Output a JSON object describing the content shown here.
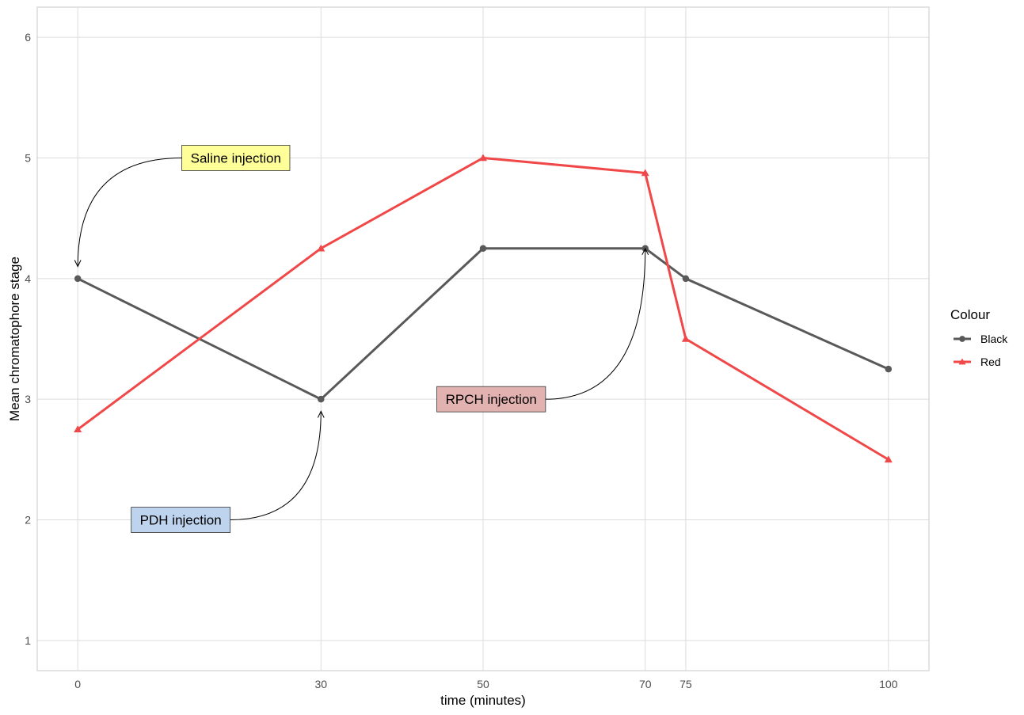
{
  "chart_data": {
    "type": "line",
    "xlabel": "time (minutes)",
    "ylabel": "Mean chromatophore stage",
    "x_ticks": [
      0,
      30,
      50,
      70,
      75,
      100
    ],
    "y_ticks": [
      1,
      2,
      3,
      4,
      5,
      6
    ],
    "xlim": [
      -5,
      105
    ],
    "ylim": [
      0.75,
      6.25
    ],
    "grid": true,
    "legend": {
      "title": "Colour",
      "position": "right"
    },
    "series": [
      {
        "name": "Black",
        "color": "#595959",
        "marker": "circle",
        "x": [
          0,
          30,
          50,
          70,
          75,
          100
        ],
        "y": [
          4,
          3,
          4.25,
          4.25,
          4,
          3.25
        ]
      },
      {
        "name": "Red",
        "color": "#f04848",
        "marker": "triangle",
        "x": [
          0,
          30,
          50,
          70,
          75,
          100
        ],
        "y": [
          2.75,
          4.25,
          5,
          4.875,
          3.5,
          2.5
        ]
      }
    ],
    "annotations": [
      {
        "text": "Saline injection",
        "fill": "#ffff99",
        "label_x": 19.5,
        "label_y": 5,
        "target_x": 0,
        "target_y": 4.1,
        "curvature": 0.35
      },
      {
        "text": "PDH injection",
        "fill": "#bed3ed",
        "label_x": 12.7,
        "label_y": 2,
        "target_x": 30,
        "target_y": 2.9,
        "curvature": 0.35
      },
      {
        "text": "RPCH injection",
        "fill": "#e2b2b0",
        "label_x": 51,
        "label_y": 3,
        "target_x": 70,
        "target_y": 4.25,
        "curvature": 0.35
      }
    ]
  }
}
